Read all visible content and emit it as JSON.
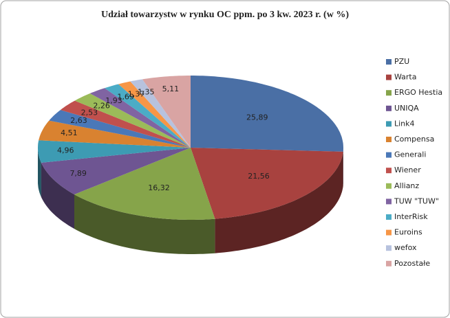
{
  "chart_data": {
    "type": "pie3d",
    "title": "Udział towarzystw  w rynku OC ppm.  po 3 kw. 2023 r. (w %)",
    "categories": [
      "PZU",
      "Warta",
      "ERGO Hestia",
      "UNIQA",
      "Link4",
      "Compensa",
      "Generali",
      "Wiener",
      "Allianz",
      "TUW \"TUW\"",
      "InterRisk",
      "Euroins",
      "wefox",
      "Pozostałe"
    ],
    "values": [
      25.89,
      21.56,
      16.32,
      7.89,
      4.96,
      4.51,
      2.63,
      2.53,
      2.26,
      1.93,
      1.69,
      1.37,
      1.35,
      5.11
    ],
    "value_labels": [
      "25,89",
      "21,56",
      "16,32",
      "7,89",
      "4,96",
      "4,51",
      "2,63",
      "2,53",
      "2,26",
      "1,93",
      "1,69",
      "1,37",
      "1,35",
      "5,11"
    ],
    "colors": [
      "#4a6fa5",
      "#a8423f",
      "#86a44a",
      "#6e5592",
      "#3d9bb3",
      "#d98230",
      "#4a78b8",
      "#c0504d",
      "#9bbb59",
      "#8064a2",
      "#4bacc6",
      "#f79646",
      "#b7c2de",
      "#d9a4a3"
    ],
    "legend": "right"
  }
}
